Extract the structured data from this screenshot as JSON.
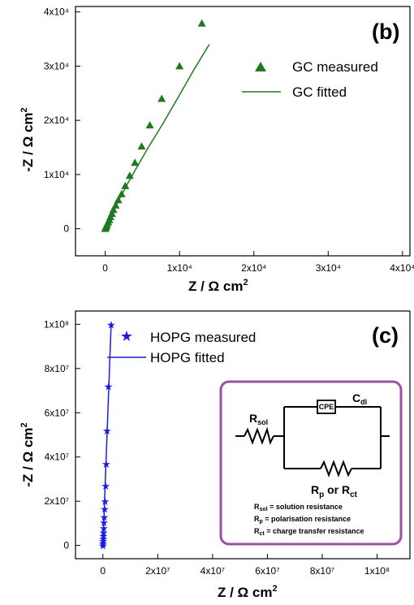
{
  "chart_data": [
    {
      "type": "scatter",
      "panel_label": "(b)",
      "xlabel": "Z / Ω cm²",
      "ylabel": "-Z / Ω cm²",
      "xlim": [
        -4000,
        41000
      ],
      "ylim": [
        -5000,
        41000
      ],
      "x_ticks": [
        {
          "value": 0,
          "label": "0"
        },
        {
          "value": 10000,
          "label": "1x10⁴"
        },
        {
          "value": 20000,
          "label": "2x10⁴"
        },
        {
          "value": 30000,
          "label": "3x10⁴"
        },
        {
          "value": 40000,
          "label": "4x10⁴"
        }
      ],
      "y_ticks": [
        {
          "value": 0,
          "label": "0"
        },
        {
          "value": 10000,
          "label": "1x10⁴"
        },
        {
          "value": 20000,
          "label": "2x10⁴"
        },
        {
          "value": 30000,
          "label": "3x10⁴"
        },
        {
          "value": 40000,
          "label": "4x10⁴"
        }
      ],
      "legend_position": "top-right",
      "series": [
        {
          "name": "GC measured",
          "marker": "triangle",
          "color": "#1e7a1e",
          "x": [
            0,
            100,
            150,
            250,
            400,
            550,
            700,
            900,
            1100,
            1400,
            1750,
            2200,
            2700,
            3300,
            4000,
            4900,
            6000,
            7600,
            10000,
            13000
          ],
          "y": [
            0,
            250,
            500,
            800,
            1200,
            1650,
            2200,
            2800,
            3500,
            4300,
            5300,
            6400,
            7900,
            9800,
            12200,
            15200,
            19100,
            24000,
            30000,
            37900
          ]
        },
        {
          "name": "GC fitted",
          "marker": "line",
          "color": "#1e7a1e",
          "x": [
            0,
            300,
            700,
            1300,
            2000,
            3000,
            4200,
            5800,
            7600,
            9800,
            12000,
            14000
          ],
          "y": [
            0,
            900,
            2000,
            3800,
            5700,
            8300,
            11200,
            15000,
            19000,
            24200,
            29500,
            34000
          ]
        }
      ]
    },
    {
      "type": "scatter",
      "panel_label": "(c)",
      "xlabel": "Z / Ω cm²",
      "ylabel": "-Z / Ω cm²",
      "xlim": [
        -10000000,
        112000000
      ],
      "ylim": [
        -6000000,
        106000000
      ],
      "x_ticks": [
        {
          "value": 0,
          "label": "0"
        },
        {
          "value": 20000000,
          "label": "2x10⁷"
        },
        {
          "value": 40000000,
          "label": "4x10⁷"
        },
        {
          "value": 60000000,
          "label": "6x10⁷"
        },
        {
          "value": 80000000,
          "label": "8x10⁷"
        },
        {
          "value": 100000000,
          "label": "1x10⁸"
        }
      ],
      "y_ticks": [
        {
          "value": 0,
          "label": "0"
        },
        {
          "value": 20000000,
          "label": "2x10⁷"
        },
        {
          "value": 40000000,
          "label": "4x10⁷"
        },
        {
          "value": 60000000,
          "label": "6x10⁷"
        },
        {
          "value": 80000000,
          "label": "8x10⁷"
        },
        {
          "value": 100000000,
          "label": "1x10⁸"
        }
      ],
      "legend_position": "top-right",
      "series": [
        {
          "name": "HOPG measured",
          "marker": "star",
          "color": "#1a1ae6",
          "x": [
            0,
            50000,
            100000,
            150000,
            200000,
            250000,
            300000,
            400000,
            500000,
            650000,
            800000,
            1000000,
            1200000,
            1500000,
            2000000,
            3000000
          ],
          "y": [
            0,
            1000000,
            2000000,
            3200000,
            4500000,
            6000000,
            8000000,
            10500000,
            13000000,
            16500000,
            20000000,
            27000000,
            37000000,
            52000000,
            72000000,
            100000000
          ]
        },
        {
          "name": "HOPG fitted",
          "marker": "line",
          "color": "#1a1ae6",
          "x": [
            0,
            1000000,
            2000000,
            3000000
          ],
          "y": [
            0,
            33000000,
            66000000,
            100000000
          ]
        }
      ],
      "inset": {
        "border_color": "#9b4fa5",
        "labels": {
          "rsol": "R",
          "rsol_sub": "sol",
          "cpe": "CPE",
          "cdl": "C",
          "cdl_sub": "dl",
          "rp_text_1": "R",
          "rp_sub_1": "p",
          "rp_or": " or R",
          "rp_sub_2": "ct"
        },
        "definitions": [
          {
            "symbol": "R",
            "sub": "sol",
            "text": " = solution resistance"
          },
          {
            "symbol": "R",
            "sub": "p",
            "text": " = polarisation resistance"
          },
          {
            "symbol": "R",
            "sub": "ct",
            "text": " = charge transfer resistance"
          }
        ]
      }
    }
  ]
}
